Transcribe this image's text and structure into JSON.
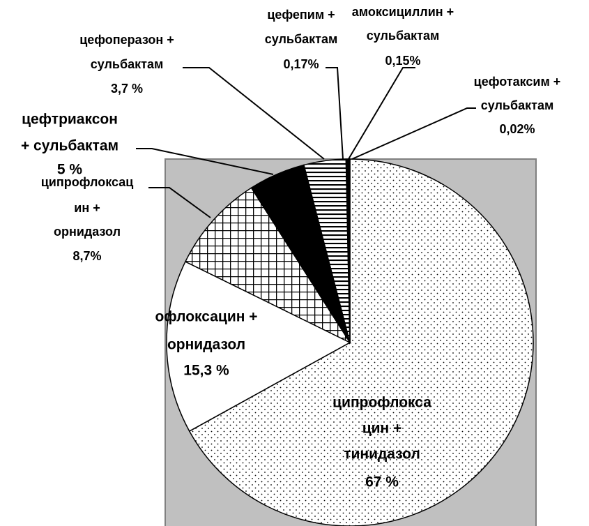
{
  "chart_data": {
    "type": "pie",
    "categories": [
      [
        "ципрофлокса",
        "цин +",
        "тинидазол"
      ],
      [
        "офлоксацин +",
        "орнидазол"
      ],
      [
        "ципрофлоксац",
        "ин +",
        "орнидазол"
      ],
      [
        "цефтриаксон",
        "+ сульбактам"
      ],
      [
        "цефоперазон +",
        "сульбактам"
      ],
      [
        "цефепим +",
        "сульбактам"
      ],
      [
        "амоксициллин +",
        "сульбактам"
      ],
      [
        "цефотаксим +",
        "сульбактам"
      ]
    ],
    "values": [
      67,
      15.3,
      8.7,
      5,
      3.7,
      0.17,
      0.15,
      0.02
    ],
    "value_labels": [
      "67 %",
      "15,3 %",
      "8,7%",
      "5 %",
      "3,7 %",
      "0,17%",
      "0,15%",
      "0,02%"
    ],
    "patterns": [
      "dots",
      "none",
      "crosshatch",
      "solid",
      "hlines",
      "solid",
      "solid",
      "solid"
    ],
    "colors": [
      "#ffffff",
      "#ffffff",
      "#ffffff",
      "#000000",
      "#ffffff",
      "#000000",
      "#000000",
      "#000000"
    ],
    "background": "#c0c0c0"
  }
}
